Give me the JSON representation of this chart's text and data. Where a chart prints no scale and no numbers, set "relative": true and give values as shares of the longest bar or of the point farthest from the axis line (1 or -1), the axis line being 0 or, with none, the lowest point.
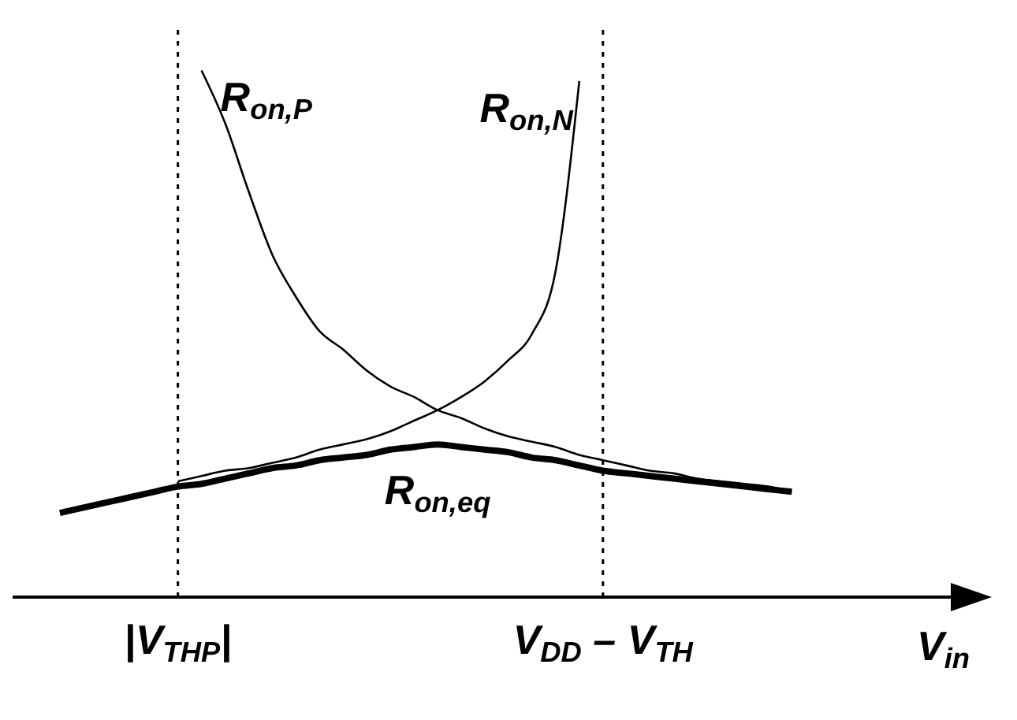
{
  "chart_data": {
    "type": "line",
    "relative": true,
    "xlabel": "V$_{in}$",
    "categories": [
      null,
      null,
      null,
      null,
      null,
      null,
      null,
      "|V$_{THP}$|",
      null,
      null,
      null,
      null,
      null,
      null,
      null,
      null,
      null,
      null,
      null,
      null,
      null,
      null,
      null,
      null,
      null,
      "V$_{DD}$ – V$_{TH}$",
      null,
      null,
      null,
      null,
      null,
      null,
      null,
      null,
      null,
      null,
      null,
      null,
      null,
      null,
      null
    ],
    "ref_lines": [
      {
        "axis": "x",
        "value": "|V$_{THP}$|",
        "line_style": "dotted",
        "color": "#000000"
      },
      {
        "axis": "x",
        "value": "V$_{DD}$ – V$_{TH}$",
        "line_style": "dotted",
        "color": "#000000"
      }
    ],
    "marker": "none",
    "line_style": "solid",
    "series": [
      {
        "name": "R$_{on,P}$",
        "color": "#000000",
        "values": [
          null,
          null,
          null,
          null,
          null,
          null,
          null,
          null,
          1.0,
          0.9,
          0.77,
          0.65,
          0.57,
          0.505,
          0.47,
          0.43,
          0.4,
          0.38,
          0.355,
          0.34,
          0.32,
          0.305,
          0.295,
          0.285,
          0.27,
          0.26,
          0.25,
          0.24,
          0.235,
          0.225,
          0.22,
          0.215,
          0.21,
          0.2,
          null,
          null,
          null,
          null,
          null,
          null,
          null
        ]
      },
      {
        "name": "R$_{on,N}$",
        "color": "#000000",
        "values": [
          null,
          null,
          null,
          null,
          null,
          null,
          null,
          0.22,
          0.23,
          0.24,
          0.245,
          0.255,
          0.265,
          0.28,
          0.29,
          0.3,
          0.315,
          0.335,
          0.355,
          0.38,
          0.41,
          0.45,
          0.5,
          0.62,
          0.98,
          null,
          null,
          null,
          null,
          null,
          null,
          null,
          null,
          null,
          null,
          null,
          null,
          null,
          null,
          null,
          null
        ]
      },
      {
        "name": "R$_{on,eq}$",
        "color": "#000000",
        "values": [
          null,
          null,
          0.16,
          0.17,
          0.18,
          0.19,
          0.2,
          0.21,
          0.215,
          0.225,
          0.235,
          0.245,
          0.25,
          0.26,
          0.265,
          0.27,
          0.28,
          0.285,
          0.29,
          0.285,
          0.28,
          0.275,
          0.265,
          0.26,
          0.25,
          0.24,
          0.235,
          0.23,
          0.225,
          0.22,
          0.215,
          0.21,
          0.205,
          0.2,
          null,
          null,
          null,
          null,
          null,
          null,
          null
        ]
      }
    ]
  }
}
